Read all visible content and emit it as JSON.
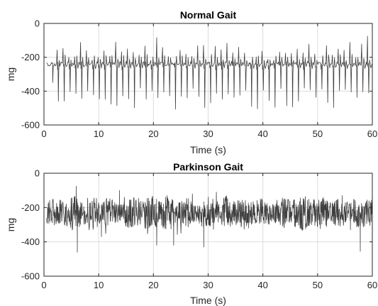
{
  "chart_data": [
    {
      "type": "line",
      "title": "Normal Gait",
      "xlabel": "Time (s)",
      "ylabel": "mg",
      "xlim": [
        0,
        60
      ],
      "ylim": [
        -600,
        0
      ],
      "xticks": [
        "0",
        "10",
        "20",
        "30",
        "40",
        "50",
        "60"
      ],
      "yticks": [
        "0",
        "-200",
        "-400",
        "-600"
      ],
      "grid": true,
      "series": [
        {
          "color": "#3f3f3f",
          "signal": {
            "x_start": 0.5,
            "x_end": 60,
            "baseline": -240,
            "pattern": "periodic gait strides",
            "stride_period_s": 1.07,
            "peak_min": -130,
            "trough_min": -510
          }
        }
      ]
    },
    {
      "type": "line",
      "title": "Parkinson Gait",
      "xlabel": "Time (s)",
      "ylabel": "mg",
      "xlim": [
        0,
        60
      ],
      "ylim": [
        -600,
        0
      ],
      "xticks": [
        "0",
        "10",
        "20",
        "30",
        "40",
        "50",
        "60"
      ],
      "yticks": [
        "0",
        "-200",
        "-400",
        "-600"
      ],
      "grid": true,
      "series": [
        {
          "color": "#3f3f3f",
          "signal": {
            "x_start": 0.5,
            "x_end": 60,
            "baseline": -230,
            "pattern": "irregular tremor noise",
            "spikes": [
              {
                "x": 5.9,
                "y": -75
              },
              {
                "x": 6.1,
                "y": -460
              },
              {
                "x": 10.5,
                "y": -370
              },
              {
                "x": 13.8,
                "y": -100
              },
              {
                "x": 20.6,
                "y": -420
              },
              {
                "x": 23.7,
                "y": -420
              },
              {
                "x": 29.2,
                "y": -430
              },
              {
                "x": 31.5,
                "y": -110
              },
              {
                "x": 54.5,
                "y": -130
              },
              {
                "x": 56.0,
                "y": -330
              },
              {
                "x": 57.8,
                "y": -455
              }
            ]
          }
        }
      ]
    }
  ]
}
